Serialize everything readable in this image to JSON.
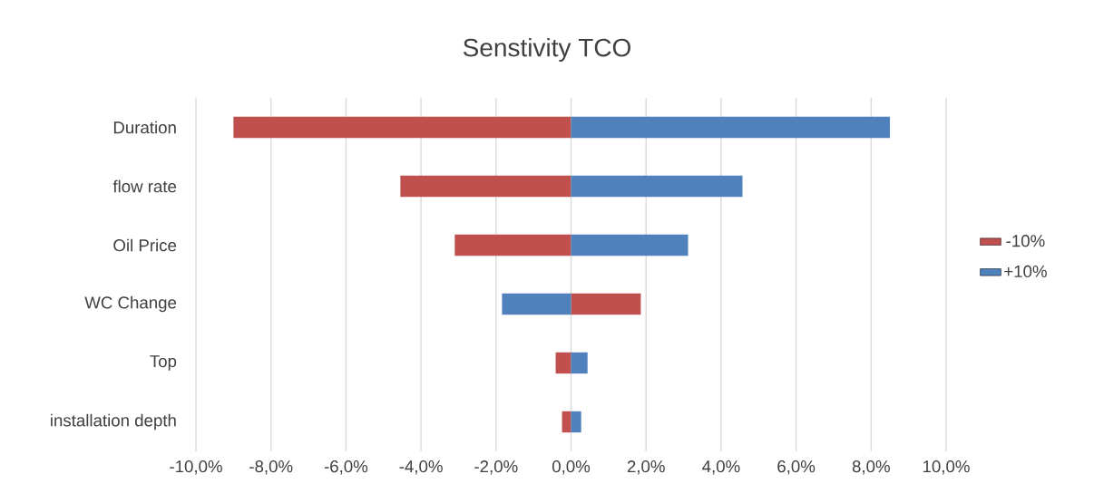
{
  "chart_data": {
    "type": "bar",
    "orientation": "horizontal",
    "title": "Senstivity TCO",
    "categories": [
      "Duration",
      "flow rate",
      "Oil Price",
      "WC Change",
      "Top",
      "installation depth"
    ],
    "series": [
      {
        "name": "-10%",
        "color": "#c0504d",
        "values": [
          -9.0,
          -4.55,
          -3.1,
          1.86,
          -0.41,
          -0.24
        ]
      },
      {
        "name": "+10%",
        "color": "#4f81bd",
        "values": [
          8.5,
          4.57,
          3.12,
          -1.84,
          0.44,
          0.27
        ]
      }
    ],
    "xlim": [
      -10,
      10
    ],
    "xticks": [
      {
        "value": -10,
        "label": "-10,0%"
      },
      {
        "value": -8,
        "label": "-8,0%"
      },
      {
        "value": -6,
        "label": "-6,0%"
      },
      {
        "value": -4,
        "label": "-4,0%"
      },
      {
        "value": -2,
        "label": "-2,0%"
      },
      {
        "value": 0,
        "label": "0,0%"
      },
      {
        "value": 2,
        "label": "2,0%"
      },
      {
        "value": 4,
        "label": "4,0%"
      },
      {
        "value": 6,
        "label": "6,0%"
      },
      {
        "value": 8,
        "label": "8,0%"
      },
      {
        "value": 10,
        "label": "10,0%"
      }
    ],
    "grid": "x",
    "legend": "right",
    "stacked": true
  }
}
